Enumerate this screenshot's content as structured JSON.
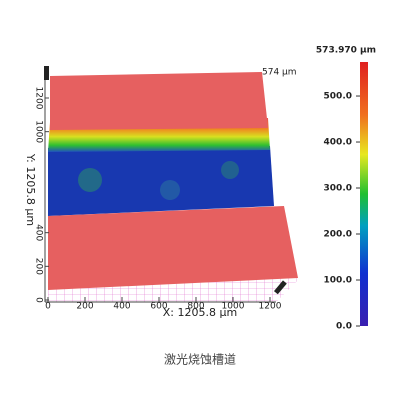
{
  "image_caption": "激光烧蚀槽道",
  "colorbar": {
    "max_label": "573.970 µm",
    "range": [
      0,
      573.97
    ],
    "ticks": [
      {
        "value": 0,
        "label": "0.0"
      },
      {
        "value": 100,
        "label": "100.0"
      },
      {
        "value": 200,
        "label": "200.0"
      },
      {
        "value": 300,
        "label": "300.0"
      },
      {
        "value": 400,
        "label": "400.0"
      },
      {
        "value": 500,
        "label": "500.0"
      }
    ]
  },
  "plot": {
    "z_label": "574 µm",
    "x_axis": {
      "label": "X: 1205.8 µm",
      "range": [
        0,
        1200
      ],
      "ticks": [
        0,
        200,
        400,
        600,
        800,
        1000,
        1200
      ]
    },
    "y_axis": {
      "label": "Y: 1205.8 µm",
      "range": [
        0,
        1200
      ],
      "ticks": [
        0,
        200,
        400,
        1000,
        1200
      ]
    }
  }
}
